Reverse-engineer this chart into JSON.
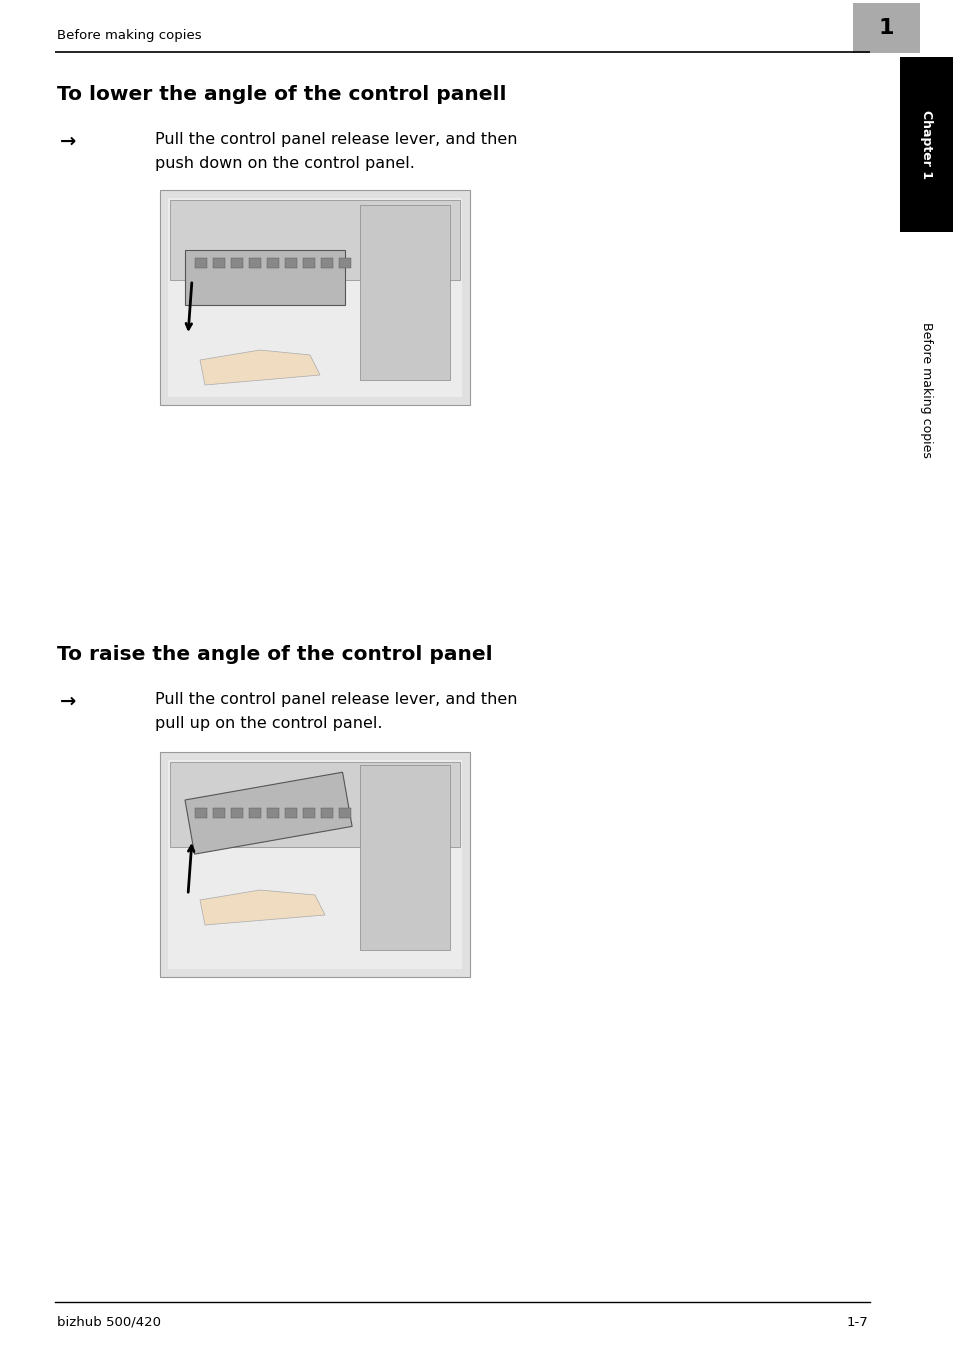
{
  "page_bg": "#ffffff",
  "header_text": "Before making copies",
  "chapter_num": "1",
  "chapter_box_color": "#aaaaaa",
  "sidebar_chapter": "Chapter 1",
  "sidebar_section": "Before making copies",
  "title1": "To lower the angle of the control panell",
  "arrow_char": "→",
  "body1_line1": "Pull the control panel release lever, and then",
  "body1_line2": "push down on the control panel.",
  "title2": "To raise the angle of the control panel",
  "body2_line1": "Pull the control panel release lever, and then",
  "body2_line2": "pull up on the control panel.",
  "footer_left": "bizhub 500/420",
  "footer_right": "1-7",
  "header_fontsize": 9.5,
  "title_fontsize": 14.5,
  "body_fontsize": 11.5,
  "footer_fontsize": 9.5,
  "line_color": "#000000",
  "text_color": "#000000",
  "sidebar_bg": "#000000",
  "sidebar_text_color": "#ffffff",
  "img_face_color": "#e0e0e0",
  "img_edge_color": "#999999"
}
